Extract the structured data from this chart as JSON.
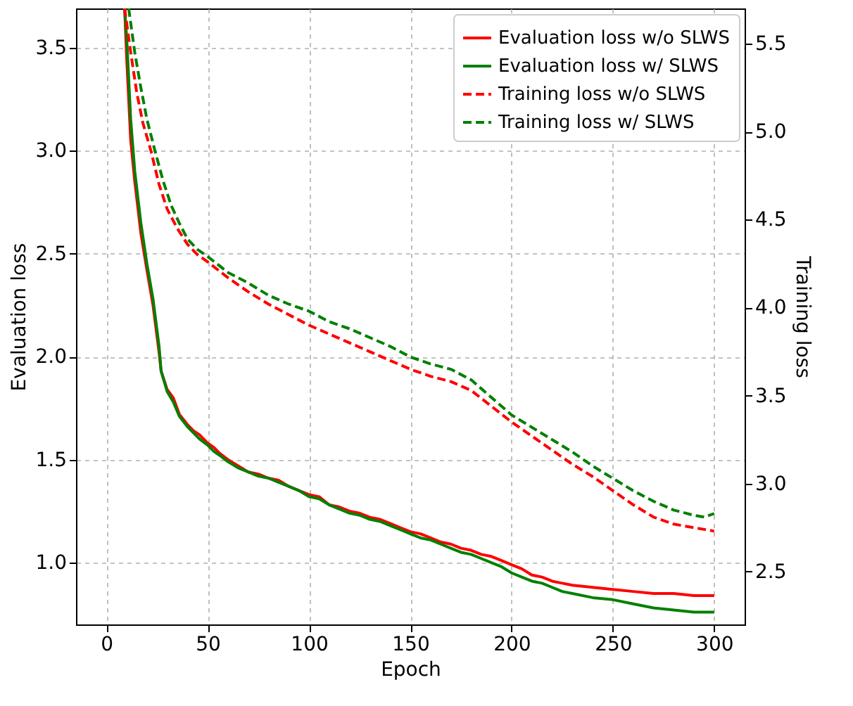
{
  "chart_data": {
    "type": "line",
    "xlabel": "Epoch",
    "ylabel": "Evaluation loss",
    "y2label": "Training loss",
    "xlim": [
      -15,
      315
    ],
    "xticks": [
      0,
      50,
      100,
      150,
      200,
      250,
      300
    ],
    "ylim": [
      0.7,
      3.69
    ],
    "yticks": [
      {
        "value": 1,
        "label": "1.0"
      },
      1.5,
      {
        "value": 2,
        "label": "2.0"
      },
      2.5,
      {
        "value": 3,
        "label": "3.0"
      },
      3.5
    ],
    "y2lim": [
      2.2,
      5.7
    ],
    "y2ticks": [
      2.5,
      {
        "value": 3,
        "label": "3.0"
      },
      3.5,
      {
        "value": 4,
        "label": "4.0"
      },
      4.5,
      {
        "value": 5,
        "label": "5.0"
      },
      5.5
    ],
    "grid": true,
    "legend": "top right",
    "series": [
      {
        "name": "Evaluation loss w/o SLWS",
        "color": "#ff0000",
        "line_style": "solid",
        "x": [
          9,
          10,
          12,
          14,
          17,
          20,
          23,
          26,
          27,
          30,
          33,
          36,
          40,
          43,
          46,
          50,
          53,
          56,
          60,
          65,
          70,
          75,
          80,
          85,
          90,
          95,
          100,
          105,
          110,
          115,
          120,
          125,
          130,
          135,
          140,
          145,
          150,
          155,
          160,
          165,
          170,
          175,
          180,
          185,
          190,
          195,
          200,
          205,
          210,
          215,
          220,
          225,
          230,
          240,
          250,
          260,
          270,
          280,
          290,
          300
        ],
        "values": [
          3.69,
          3.45,
          3.05,
          2.85,
          2.6,
          2.42,
          2.25,
          2.02,
          1.93,
          1.84,
          1.8,
          1.72,
          1.67,
          1.64,
          1.62,
          1.58,
          1.56,
          1.53,
          1.5,
          1.47,
          1.44,
          1.43,
          1.41,
          1.4,
          1.37,
          1.35,
          1.33,
          1.32,
          1.28,
          1.27,
          1.25,
          1.24,
          1.22,
          1.21,
          1.19,
          1.17,
          1.15,
          1.14,
          1.12,
          1.1,
          1.09,
          1.07,
          1.06,
          1.04,
          1.03,
          1.01,
          0.99,
          0.97,
          0.94,
          0.93,
          0.91,
          0.9,
          0.89,
          0.88,
          0.87,
          0.86,
          0.85,
          0.85,
          0.84,
          0.84
        ]
      },
      {
        "name": "Evaluation loss w/ SLWS",
        "color": "#008000",
        "line_style": "solid",
        "x": [
          9,
          10,
          12,
          14,
          17,
          20,
          23,
          26,
          27,
          30,
          33,
          36,
          40,
          43,
          46,
          50,
          53,
          56,
          60,
          65,
          70,
          75,
          80,
          85,
          90,
          95,
          100,
          105,
          110,
          115,
          120,
          125,
          130,
          135,
          140,
          145,
          150,
          155,
          160,
          165,
          170,
          175,
          180,
          185,
          190,
          195,
          200,
          205,
          210,
          215,
          220,
          225,
          230,
          240,
          250,
          260,
          270,
          280,
          290,
          300
        ],
        "values": [
          3.69,
          3.55,
          3.15,
          2.9,
          2.65,
          2.45,
          2.28,
          2.05,
          1.93,
          1.83,
          1.78,
          1.71,
          1.66,
          1.63,
          1.6,
          1.57,
          1.54,
          1.52,
          1.49,
          1.46,
          1.44,
          1.42,
          1.41,
          1.39,
          1.37,
          1.35,
          1.32,
          1.31,
          1.28,
          1.26,
          1.24,
          1.23,
          1.21,
          1.2,
          1.18,
          1.16,
          1.14,
          1.12,
          1.11,
          1.09,
          1.07,
          1.05,
          1.04,
          1.02,
          1.0,
          0.98,
          0.95,
          0.93,
          0.91,
          0.9,
          0.88,
          0.86,
          0.85,
          0.83,
          0.82,
          0.8,
          0.78,
          0.77,
          0.76,
          0.76
        ]
      },
      {
        "name": "Training loss w/o SLWS",
        "color": "#ff0000",
        "line_style": "dashed",
        "axis": "y2",
        "x": [
          9,
          12,
          15,
          18,
          22,
          26,
          30,
          35,
          40,
          45,
          50,
          60,
          70,
          80,
          90,
          100,
          110,
          120,
          130,
          140,
          150,
          160,
          170,
          180,
          190,
          200,
          210,
          220,
          230,
          240,
          250,
          260,
          270,
          280,
          290,
          295,
          300
        ],
        "values": [
          5.7,
          5.45,
          5.22,
          5.05,
          4.89,
          4.7,
          4.56,
          4.45,
          4.36,
          4.3,
          4.26,
          4.17,
          4.09,
          4.02,
          3.96,
          3.9,
          3.85,
          3.8,
          3.75,
          3.7,
          3.65,
          3.61,
          3.58,
          3.53,
          3.44,
          3.35,
          3.27,
          3.19,
          3.11,
          3.04,
          2.96,
          2.88,
          2.81,
          2.77,
          2.75,
          2.74,
          2.73
        ]
      },
      {
        "name": "Training loss w/ SLWS",
        "color": "#008000",
        "line_style": "dashed",
        "axis": "y2",
        "x": [
          11,
          14,
          17,
          20,
          24,
          28,
          32,
          36,
          40,
          45,
          50,
          60,
          70,
          80,
          90,
          100,
          110,
          120,
          130,
          140,
          150,
          160,
          170,
          180,
          190,
          200,
          210,
          220,
          230,
          240,
          250,
          260,
          270,
          280,
          290,
          295,
          300
        ],
        "values": [
          5.7,
          5.45,
          5.25,
          5.07,
          4.89,
          4.72,
          4.58,
          4.48,
          4.39,
          4.33,
          4.29,
          4.2,
          4.14,
          4.07,
          4.02,
          3.98,
          3.92,
          3.88,
          3.83,
          3.78,
          3.72,
          3.68,
          3.65,
          3.59,
          3.49,
          3.39,
          3.32,
          3.25,
          3.18,
          3.1,
          3.03,
          2.96,
          2.9,
          2.85,
          2.82,
          2.81,
          2.83
        ]
      }
    ]
  }
}
